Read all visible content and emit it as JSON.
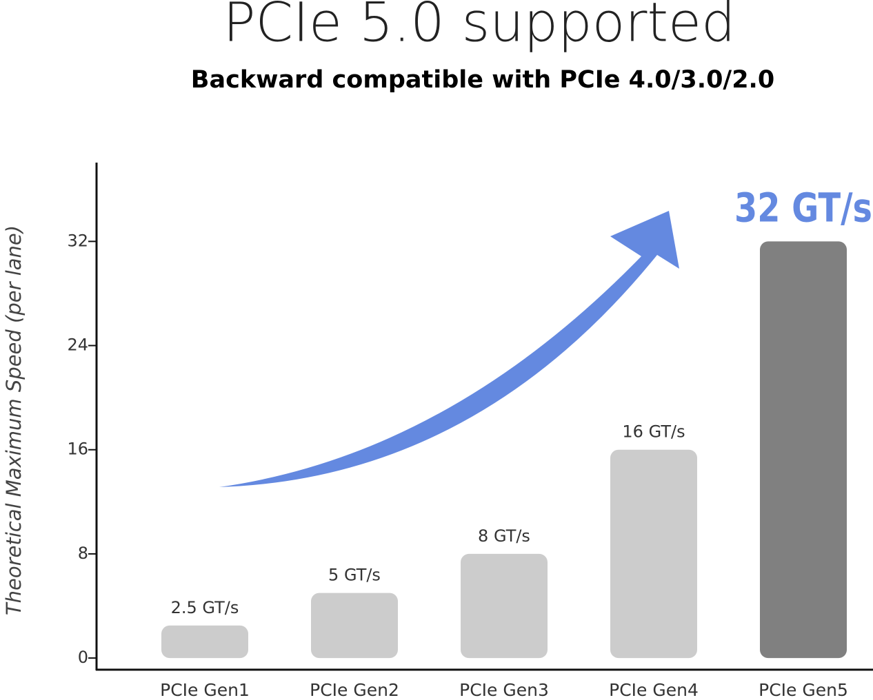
{
  "chart_data": {
    "type": "bar",
    "title": "PCIe 5.0  supported",
    "subtitle": "Backward compatible with PCIe 4.0/3.0/2.0",
    "y_label": "Theoretical Maximum Speed (per lane)",
    "categories": [
      "PCIe Gen1",
      "PCIe Gen2",
      "PCIe Gen3",
      "PCIe Gen4",
      "PCIe Gen5"
    ],
    "values": [
      2.5,
      5,
      8,
      16,
      32
    ],
    "value_labels": [
      "2.5 GT/s",
      "5 GT/s",
      "8 GT/s",
      "16 GT/s",
      "32 GT/s"
    ],
    "colors": [
      "#cccccc",
      "#cccccc",
      "#cccccc",
      "#cccccc",
      "#808080"
    ],
    "highlight_color": "#6489e0",
    "ylim": [
      -1,
      38
    ],
    "yticks": [
      0,
      8,
      16,
      24,
      32
    ],
    "grid": false
  }
}
